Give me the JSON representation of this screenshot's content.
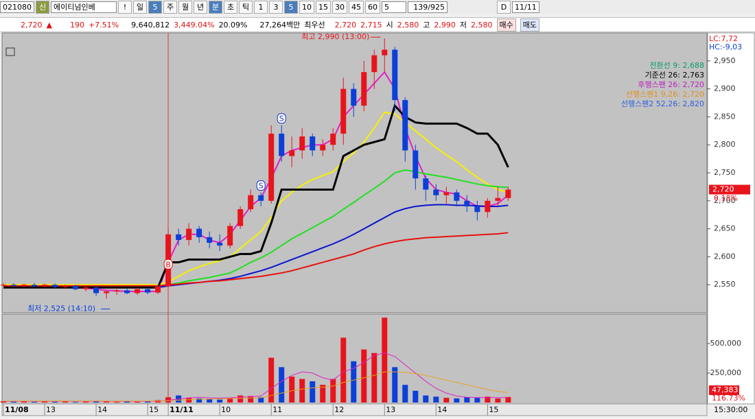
{
  "toolbar": {
    "code": "021080",
    "badge": "신",
    "name": "에이티넘인베",
    "alert": "!",
    "period_buttons": [
      "일",
      "5",
      "주",
      "월",
      "년",
      "분",
      "초",
      "틱"
    ],
    "interval_buttons": [
      "1",
      "3",
      "5",
      "10",
      "15",
      "30",
      "45",
      "60"
    ],
    "interval_input": "5",
    "count": "139/925",
    "date_checkbox": "D",
    "date": "11/11"
  },
  "quote_bar": {
    "price": "2,720",
    "arrow": "▲",
    "change": "190",
    "change_pct": "+7.51%",
    "volume": "9,640,812",
    "volume_ratio": "3,449.04%",
    "turnover": "20.09%",
    "amount": "27,264백만",
    "best_label": "최우선",
    "ask": "2,720",
    "bid": "2,715",
    "open_label": "시",
    "open": "2,580",
    "high_label": "고",
    "high": "2,990",
    "low_label": "저",
    "low": "2,580",
    "buy": "매수",
    "sell": "매도"
  },
  "chart_data": [
    {
      "type": "candlestick",
      "up_color": "#e8141c",
      "down_color": "#0b3fd8",
      "xlim": [
        0,
        68.3
      ],
      "xticks": [
        {
          "value": 0,
          "label": "11/08"
        },
        {
          "value": 4,
          "label": "13"
        },
        {
          "value": 9,
          "label": "14"
        },
        {
          "value": 14,
          "label": "15"
        },
        {
          "value": 16,
          "label": "11/11"
        },
        {
          "value": 21,
          "label": "10"
        },
        {
          "value": 26,
          "label": "11"
        },
        {
          "value": 32,
          "label": "12"
        },
        {
          "value": 37,
          "label": "13"
        },
        {
          "value": 42,
          "label": "14"
        },
        {
          "value": 47,
          "label": "15"
        }
      ],
      "ylim": [
        2500,
        3000
      ],
      "yticks": [
        {
          "value": 2550,
          "label": "2,550"
        },
        {
          "value": 2600,
          "label": "2,600"
        },
        {
          "value": 2650,
          "label": "2,650"
        },
        {
          "value": 2700,
          "label": "2,700"
        },
        {
          "value": 2750,
          "label": "2,750"
        },
        {
          "value": 2800,
          "label": "2,800"
        },
        {
          "value": 2850,
          "label": "2,850"
        },
        {
          "value": 2900,
          "label": "2,900"
        },
        {
          "value": 2950,
          "label": "2,950"
        }
      ],
      "open": [
        2550,
        2550,
        2548,
        2550,
        2547,
        2550,
        2546,
        2548,
        2542,
        2545,
        2535,
        2538,
        2540,
        2535,
        2542,
        2536,
        2547,
        2640,
        2630,
        2650,
        2635,
        2625,
        2620,
        2655,
        2685,
        2710,
        2700,
        2820,
        2780,
        2790,
        2815,
        2790,
        2800,
        2820,
        2900,
        2870,
        2930,
        2960,
        2970,
        2880,
        2790,
        2740,
        2720,
        2710,
        2715,
        2700,
        2690,
        2680,
        2700,
        2705
      ],
      "high": [
        2553,
        2553,
        2552,
        2553,
        2552,
        2552,
        2550,
        2550,
        2548,
        2547,
        2540,
        2545,
        2543,
        2545,
        2545,
        2550,
        2650,
        2650,
        2660,
        2655,
        2645,
        2640,
        2660,
        2690,
        2720,
        2715,
        2835,
        2835,
        2815,
        2830,
        2820,
        2810,
        2830,
        2920,
        2910,
        2950,
        2970,
        2990,
        2975,
        2885,
        2800,
        2745,
        2730,
        2725,
        2720,
        2710,
        2700,
        2705,
        2725,
        2725
      ],
      "low": [
        2547,
        2545,
        2545,
        2546,
        2545,
        2544,
        2543,
        2540,
        2538,
        2530,
        2525,
        2532,
        2533,
        2532,
        2533,
        2533,
        2545,
        2620,
        2620,
        2625,
        2615,
        2610,
        2615,
        2650,
        2680,
        2690,
        2695,
        2770,
        2760,
        2775,
        2780,
        2780,
        2790,
        2800,
        2850,
        2860,
        2900,
        2930,
        2860,
        2770,
        2720,
        2700,
        2700,
        2695,
        2690,
        2680,
        2665,
        2670,
        2690,
        2700
      ],
      "close": [
        2550,
        2548,
        2550,
        2547,
        2550,
        2546,
        2548,
        2542,
        2545,
        2535,
        2538,
        2540,
        2535,
        2542,
        2536,
        2547,
        2640,
        2630,
        2650,
        2635,
        2625,
        2620,
        2655,
        2685,
        2710,
        2700,
        2820,
        2780,
        2790,
        2815,
        2790,
        2800,
        2820,
        2900,
        2870,
        2930,
        2960,
        2970,
        2880,
        2790,
        2740,
        2720,
        2710,
        2715,
        2700,
        2690,
        2680,
        2700,
        2705,
        2720
      ],
      "lines": [
        {
          "color": "#e020c8",
          "values": [
            2548,
            2548,
            2548,
            2547,
            2547,
            2547,
            2546,
            2545,
            2544,
            2542,
            2540,
            2539,
            2538,
            2538,
            2538,
            2538,
            2590,
            2630,
            2640,
            2640,
            2630,
            2625,
            2640,
            2665,
            2690,
            2705,
            2740,
            2780,
            2790,
            2795,
            2800,
            2800,
            2810,
            2850,
            2870,
            2890,
            2910,
            2930,
            2900,
            2830,
            2780,
            2740,
            2720,
            2715,
            2712,
            2700,
            2690,
            2690,
            2695,
            2710
          ]
        },
        {
          "color": "#f8f000",
          "values": [
            2550,
            2550,
            2550,
            2550,
            2550,
            2550,
            2550,
            2550,
            2550,
            2550,
            2550,
            2550,
            2550,
            2550,
            2550,
            2550,
            2555,
            2565,
            2575,
            2582,
            2588,
            2593,
            2600,
            2615,
            2630,
            2645,
            2670,
            2700,
            2715,
            2728,
            2738,
            2745,
            2752,
            2770,
            2785,
            2805,
            2830,
            2858,
            2855,
            2840,
            2825,
            2810,
            2795,
            2782,
            2770,
            2755,
            2742,
            2730,
            2720,
            2715
          ]
        },
        {
          "color": "#20e020",
          "values": [
            2545,
            2545,
            2545,
            2545,
            2545,
            2545,
            2545,
            2545,
            2545,
            2545,
            2545,
            2545,
            2545,
            2545,
            2545,
            2545,
            2550,
            2553,
            2557,
            2560,
            2563,
            2567,
            2571,
            2580,
            2590,
            2598,
            2608,
            2620,
            2632,
            2642,
            2652,
            2662,
            2672,
            2685,
            2697,
            2710,
            2722,
            2735,
            2750,
            2755,
            2752,
            2748,
            2745,
            2742,
            2738,
            2734,
            2730,
            2727,
            2725,
            2724
          ]
        },
        {
          "color": "#0a14d0",
          "values": [
            2545,
            2545,
            2545,
            2545,
            2545,
            2545,
            2545,
            2545,
            2545,
            2545,
            2545,
            2545,
            2545,
            2545,
            2545,
            2545,
            2548,
            2550,
            2552,
            2554,
            2556,
            2558,
            2561,
            2565,
            2570,
            2575,
            2581,
            2588,
            2595,
            2602,
            2609,
            2616,
            2623,
            2631,
            2640,
            2650,
            2660,
            2670,
            2680,
            2686,
            2690,
            2692,
            2693,
            2693,
            2692,
            2692,
            2691,
            2690,
            2690,
            2692
          ]
        },
        {
          "color": "#e81010",
          "values": [
            2548,
            2548,
            2548,
            2548,
            2548,
            2548,
            2548,
            2548,
            2548,
            2548,
            2548,
            2548,
            2548,
            2548,
            2548,
            2548,
            2550,
            2551,
            2553,
            2554,
            2556,
            2557,
            2559,
            2561,
            2563,
            2565,
            2568,
            2571,
            2575,
            2580,
            2585,
            2590,
            2595,
            2600,
            2605,
            2612,
            2618,
            2623,
            2627,
            2630,
            2632,
            2634,
            2635,
            2636,
            2637,
            2638,
            2639,
            2640,
            2641,
            2643
          ]
        },
        {
          "color": "#000000",
          "values": [
            2545,
            2545,
            2545,
            2545,
            2545,
            2545,
            2545,
            2545,
            2545,
            2545,
            2545,
            2545,
            2545,
            2545,
            2545,
            2545,
            2590,
            2590,
            2595,
            2595,
            2595,
            2595,
            2600,
            2605,
            2605,
            2610,
            2660,
            2720,
            2720,
            2720,
            2720,
            2720,
            2720,
            2780,
            2790,
            2800,
            2805,
            2810,
            2870,
            2850,
            2840,
            2838,
            2838,
            2838,
            2838,
            2830,
            2820,
            2820,
            2800,
            2760
          ]
        }
      ],
      "legend": [
        {
          "text": "전환선 9: 2,688",
          "color": "#0a9a6a"
        },
        {
          "text": "기준선 26: 2,763",
          "color": "#000000"
        },
        {
          "text": "후행스팬 26: 2,720",
          "color": "#c020c0"
        },
        {
          "text": "선행스팬1 9,26: 2,720",
          "color": "#e09020"
        },
        {
          "text": "선행스팬2 52,26: 2,820",
          "color": "#3060e0"
        }
      ],
      "annotations": [
        {
          "text": "최고 2,990 (13:00)",
          "color": "#e8141c"
        },
        {
          "text": "최저 2,525 (14:10)",
          "color": "#0b3fd8"
        }
      ],
      "signals": [
        {
          "index": 16,
          "label": "B"
        },
        {
          "index": 25,
          "label": "S"
        },
        {
          "index": 27,
          "label": "S"
        }
      ],
      "axis_header": [
        {
          "text": "LC:7,72",
          "color": "#e8141c"
        },
        {
          "text": "HC:-9,03",
          "color": "#0b3fd8"
        }
      ],
      "last_price_label": "2,720",
      "change_label": "0.18%"
    },
    {
      "type": "bar",
      "ylim": [
        0,
        750000
      ],
      "yticks": [
        {
          "value": 250000,
          "label": "250,000"
        },
        {
          "value": 500000,
          "label": "500,000"
        }
      ],
      "values": [
        10000,
        8000,
        12000,
        6000,
        9000,
        7000,
        10000,
        5000,
        8000,
        15000,
        12000,
        6000,
        9000,
        7000,
        10000,
        20000,
        45000,
        60000,
        40000,
        35000,
        30000,
        25000,
        40000,
        60000,
        55000,
        45000,
        380000,
        300000,
        220000,
        200000,
        180000,
        150000,
        200000,
        550000,
        350000,
        450000,
        420000,
        720000,
        300000,
        150000,
        100000,
        60000,
        50000,
        40000,
        35000,
        45000,
        40000,
        50000,
        35000,
        47383
      ],
      "lines": [
        {
          "color": "#e020c8",
          "values": [
            10000,
            10000,
            10000,
            10000,
            10000,
            10000,
            10000,
            10000,
            10000,
            10000,
            10000,
            10000,
            10000,
            10000,
            10000,
            10000,
            20000,
            30000,
            40000,
            45000,
            40000,
            38000,
            40000,
            45000,
            50000,
            55000,
            120000,
            180000,
            230000,
            260000,
            250000,
            210000,
            190000,
            260000,
            290000,
            340000,
            400000,
            420000,
            390000,
            320000,
            250000,
            180000,
            120000,
            80000,
            55000,
            45000,
            42000,
            43000,
            42000,
            42000
          ]
        },
        {
          "color": "#e8a020",
          "values": [
            12000,
            12000,
            12000,
            12000,
            12000,
            12000,
            12000,
            12000,
            12000,
            12000,
            12000,
            12000,
            12000,
            12000,
            12000,
            12000,
            15000,
            20000,
            25000,
            28000,
            30000,
            32000,
            34000,
            36000,
            38000,
            40000,
            60000,
            80000,
            100000,
            115000,
            125000,
            130000,
            140000,
            170000,
            190000,
            210000,
            230000,
            260000,
            260000,
            255000,
            245000,
            230000,
            210000,
            190000,
            170000,
            150000,
            130000,
            110000,
            95000,
            85000
          ]
        }
      ],
      "last_volume_label": "47,383",
      "ratio_label": "116.73%",
      "time_label": "15:30:00"
    }
  ]
}
